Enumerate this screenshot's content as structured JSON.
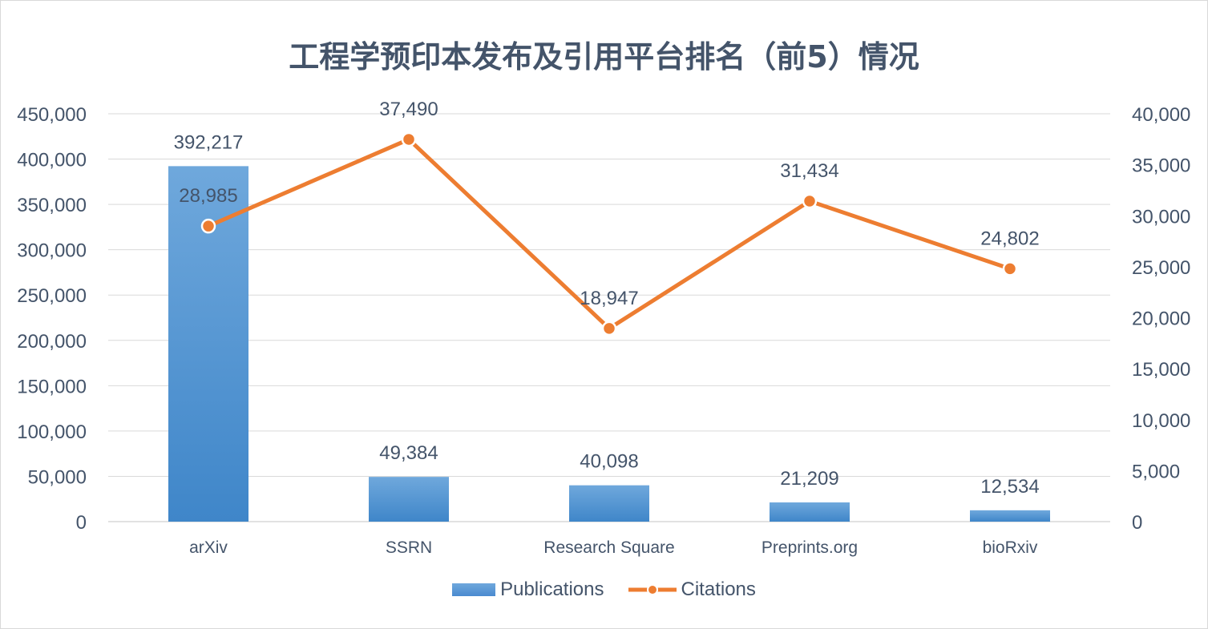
{
  "colors": {
    "bar": "#5b9bd5",
    "line": "#ed7d31",
    "text": "#44546a",
    "grid": "#d9d9d9"
  },
  "chart_data": {
    "type": "bar",
    "title": "工程学预印本发布及引用平台排名（前5）情况",
    "categories": [
      "arXiv",
      "SSRN",
      "Research Square",
      "Preprints.org",
      "bioRxiv"
    ],
    "series": [
      {
        "name": "Publications",
        "type": "bar",
        "axis": "left",
        "values": [
          392217,
          49384,
          40098,
          21209,
          12534
        ],
        "labels": [
          "392,217",
          "49,384",
          "40,098",
          "21,209",
          "12,534"
        ]
      },
      {
        "name": "Citations",
        "type": "line",
        "axis": "right",
        "values": [
          28985,
          37490,
          18947,
          31434,
          24802
        ],
        "labels": [
          "28,985",
          "37,490",
          "18,947",
          "31,434",
          "24,802"
        ]
      }
    ],
    "y_left": {
      "lim": [
        0,
        450000
      ],
      "ticks": [
        "0",
        "50,000",
        "100,000",
        "150,000",
        "200,000",
        "250,000",
        "300,000",
        "350,000",
        "400,000",
        "450,000"
      ]
    },
    "y_right": {
      "lim": [
        0,
        40000
      ],
      "ticks": [
        "0",
        "5,000",
        "10,000",
        "15,000",
        "20,000",
        "25,000",
        "30,000",
        "35,000",
        "40,000"
      ]
    },
    "grid": true,
    "legend": "bottom"
  }
}
